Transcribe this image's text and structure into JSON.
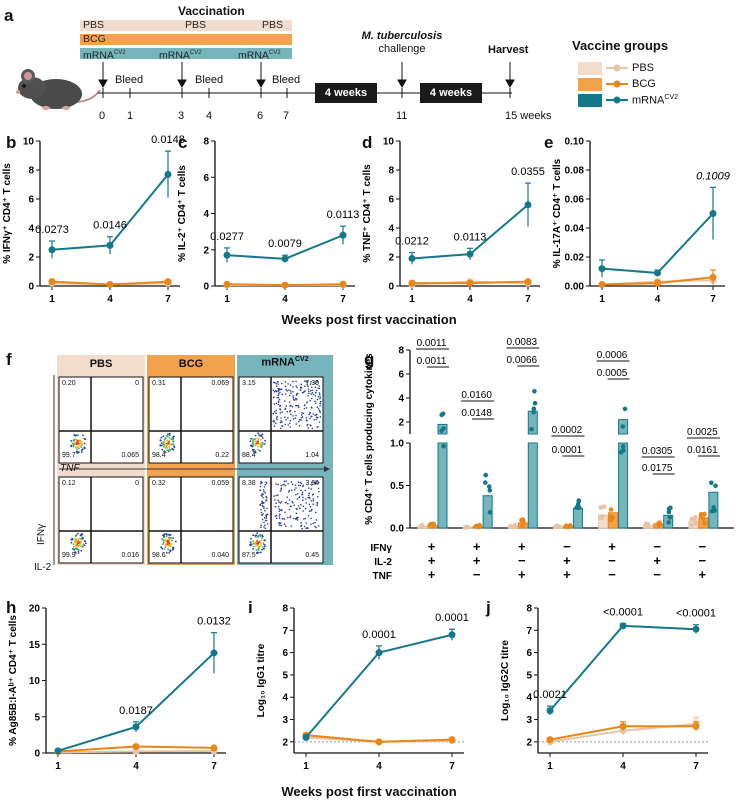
{
  "panel_letters": {
    "a": "a",
    "b": "b",
    "c": "c",
    "d": "d",
    "e": "e",
    "f": "f",
    "g": "g",
    "h": "h",
    "i": "i",
    "j": "j"
  },
  "colors": {
    "pbs": "#e8c4a6",
    "bcg": "#e8861a",
    "mrna": "#13798a",
    "pbs_bar": "#f2dccb",
    "bcg_bar": "#f3a24b",
    "mrna_bar": "#77b5bd"
  },
  "schedule": {
    "vaccination_title": "Vaccination",
    "rows": [
      {
        "label": "PBS",
        "mid": "PBS",
        "end": "PBS",
        "color": "#f2dccb"
      },
      {
        "label": "BCG",
        "color": "#f3a24b"
      },
      {
        "label": "mRNA",
        "sup": "CV2",
        "mid": "mRNA",
        "mid_sup": "CV2",
        "end": "mRNA",
        "end_sup": "CV2",
        "color": "#77b5bd"
      }
    ],
    "ticks": [
      "0",
      "1",
      "3",
      "4",
      "6",
      "7",
      "11",
      "15 weeks"
    ],
    "bleed_label": "Bleed",
    "box1": "4 weeks",
    "box2": "4 weeks",
    "challenge_italic": "M. tuberculosis",
    "challenge": "challenge",
    "harvest": "Harvest"
  },
  "legend": {
    "title": "Vaccine groups",
    "items": [
      {
        "label": "PBS"
      },
      {
        "label": "BCG"
      },
      {
        "label": "mRNA",
        "sup": "CV2"
      }
    ]
  },
  "x_title": "Weeks post first vaccination",
  "x_title_bottom": "Weeks post first vaccination",
  "flow": {
    "headers": [
      {
        "label": "PBS"
      },
      {
        "label": "BCG"
      },
      {
        "label": "mRNA",
        "sup": "CV2"
      }
    ],
    "axis_tnf": "TNF",
    "axis_ifn": "IFNγ",
    "axis_il2": "IL-2",
    "top_quadrants": [
      [
        "0.20",
        "0",
        "99.7",
        "0.065"
      ],
      [
        "0.31",
        "0.069",
        "98.4",
        "0.22"
      ],
      [
        "3.15",
        "7.39",
        "88.4",
        "1.04"
      ]
    ],
    "bottom_quadrants": [
      [
        "0.12",
        "0",
        "99.9",
        "0.016"
      ],
      [
        "0.32",
        "0.059",
        "98.6",
        "0.040"
      ],
      [
        "8.38",
        "3.64",
        "87.5",
        "0.45"
      ]
    ]
  },
  "chart_data": [
    {
      "id": "b",
      "type": "line",
      "ylabel": "% IFNγ⁺ CD4⁺ T cells",
      "x": [
        1,
        4,
        7
      ],
      "ylim": [
        0,
        10
      ],
      "yticks": [
        "0",
        "2",
        "4",
        "6",
        "8",
        "10"
      ],
      "series": [
        {
          "name": "PBS",
          "values": [
            0.2,
            0.1,
            0.2
          ]
        },
        {
          "name": "BCG",
          "values": [
            0.3,
            0.1,
            0.3
          ]
        },
        {
          "name": "mRNA CV2",
          "values": [
            2.5,
            2.8,
            7.7
          ],
          "err": [
            0.6,
            0.6,
            1.6
          ]
        }
      ],
      "annotations": [
        "0.0273",
        "0.0146",
        "0.0148"
      ]
    },
    {
      "id": "c",
      "type": "line",
      "ylabel": "% IL-2⁺ CD4⁺ T cells",
      "x": [
        1,
        4,
        7
      ],
      "ylim": [
        0,
        8
      ],
      "yticks": [
        "0",
        "2",
        "4",
        "6",
        "8"
      ],
      "series": [
        {
          "name": "PBS",
          "values": [
            0.05,
            0.05,
            0.05
          ]
        },
        {
          "name": "BCG",
          "values": [
            0.1,
            0.05,
            0.1
          ]
        },
        {
          "name": "mRNA CV2",
          "values": [
            1.7,
            1.5,
            2.8
          ],
          "err": [
            0.4,
            0.2,
            0.5
          ]
        }
      ],
      "annotations": [
        "0.0277",
        "0.0079",
        "0.0113"
      ]
    },
    {
      "id": "d",
      "type": "line",
      "ylabel": "% TNF⁺ CD4⁺ T cells",
      "x": [
        1,
        4,
        7
      ],
      "ylim": [
        0,
        10
      ],
      "yticks": [
        "0",
        "2",
        "4",
        "6",
        "8",
        "10"
      ],
      "series": [
        {
          "name": "PBS",
          "values": [
            0.1,
            0.3,
            0.2
          ]
        },
        {
          "name": "BCG",
          "values": [
            0.2,
            0.2,
            0.3
          ]
        },
        {
          "name": "mRNA CV2",
          "values": [
            1.9,
            2.2,
            5.6
          ],
          "err": [
            0.4,
            0.4,
            1.5
          ]
        }
      ],
      "annotations": [
        "0.0212",
        "0.0113",
        "0.0355"
      ]
    },
    {
      "id": "e",
      "type": "line",
      "ylabel": "% IL-17A⁺ CD4⁺ T cells",
      "x": [
        1,
        4,
        7
      ],
      "ylim": [
        0,
        0.1
      ],
      "yticks": [
        "0.00",
        "0.02",
        "0.04",
        "0.06",
        "0.08",
        "0.10"
      ],
      "series": [
        {
          "name": "PBS",
          "values": [
            0.001,
            0.003,
            0.004
          ]
        },
        {
          "name": "BCG",
          "values": [
            0.001,
            0.002,
            0.006
          ],
          "err": [
            0.001,
            0.002,
            0.005
          ]
        },
        {
          "name": "mRNA CV2",
          "values": [
            0.012,
            0.009,
            0.05
          ],
          "err": [
            0.006,
            0.002,
            0.018
          ]
        }
      ],
      "annotations": [
        "0.1009"
      ]
    },
    {
      "id": "g",
      "type": "bar",
      "ylabel": "% CD4⁺ T cells producing cytokines",
      "yticks_upper": [
        "2",
        "4",
        "6",
        "8"
      ],
      "yticks_lower": [
        "0.0",
        "0.5",
        "1.0"
      ],
      "row_labels": [
        "IFNγ",
        "IL-2",
        "TNF"
      ],
      "combos": [
        [
          "+",
          "+",
          "+"
        ],
        [
          "+",
          "+",
          "−"
        ],
        [
          "+",
          "−",
          "+"
        ],
        [
          "−",
          "+",
          "+"
        ],
        [
          "+",
          "−",
          "−"
        ],
        [
          "−",
          "+",
          "−"
        ],
        [
          "−",
          "−",
          "+"
        ]
      ],
      "series": [
        {
          "name": "PBS",
          "values": [
            0.02,
            0.01,
            0.02,
            0.02,
            0.15,
            0.03,
            0.08
          ]
        },
        {
          "name": "BCG",
          "values": [
            0.03,
            0.02,
            0.06,
            0.02,
            0.18,
            0.05,
            0.12
          ]
        },
        {
          "name": "mRNA CV2",
          "values": [
            1.8,
            0.38,
            2.9,
            0.23,
            2.2,
            0.15,
            0.42
          ]
        }
      ],
      "annotations": [
        "0.0011",
        "0.0011",
        "0.0160",
        "0.0148",
        "0.0083",
        "0.0066",
        "0.0002",
        "0.0001",
        "0.0006",
        "0.0005",
        "0.0305",
        "0.0175",
        "0.0025",
        "0.0161"
      ]
    },
    {
      "id": "h",
      "type": "line",
      "ylabel": "% Ag85B:I-Aᵇ⁺ CD4⁺ T cells",
      "x": [
        1,
        4,
        7
      ],
      "ylim": [
        0,
        20
      ],
      "yticks": [
        "0",
        "5",
        "10",
        "15",
        "20"
      ],
      "series": [
        {
          "name": "PBS",
          "values": [
            0.1,
            0.2,
            0.3
          ]
        },
        {
          "name": "BCG",
          "values": [
            0.2,
            0.9,
            0.7
          ]
        },
        {
          "name": "mRNA CV2",
          "values": [
            0.3,
            3.6,
            13.8
          ],
          "err": [
            0.2,
            0.7,
            2.8
          ]
        }
      ],
      "annotations": [
        "0.0187",
        "0.0132"
      ]
    },
    {
      "id": "i",
      "type": "line",
      "ylabel": "Log₁₀ IgG1 titre",
      "x": [
        1,
        4,
        7
      ],
      "ylim": [
        1.5,
        8
      ],
      "yticks": [
        "2",
        "3",
        "4",
        "5",
        "6",
        "7",
        "8"
      ],
      "series": [
        {
          "name": "PBS",
          "values": [
            2.2,
            2.0,
            2.05
          ]
        },
        {
          "name": "BCG",
          "values": [
            2.3,
            2.0,
            2.1
          ]
        },
        {
          "name": "mRNA CV2",
          "values": [
            2.2,
            6.0,
            6.8
          ],
          "err": [
            0.1,
            0.3,
            0.25
          ]
        }
      ],
      "annotations": [
        "0.0001",
        "0.0001"
      ]
    },
    {
      "id": "j",
      "type": "line",
      "ylabel": "Log₁₀ IgG2C titre",
      "x": [
        1,
        4,
        7
      ],
      "ylim": [
        1.5,
        8
      ],
      "yticks": [
        "2",
        "3",
        "4",
        "5",
        "6",
        "7",
        "8"
      ],
      "series": [
        {
          "name": "PBS",
          "values": [
            2.0,
            2.5,
            2.8
          ],
          "err": [
            0.05,
            0.2,
            0.3
          ]
        },
        {
          "name": "BCG",
          "values": [
            2.1,
            2.7,
            2.7
          ],
          "err": [
            0.05,
            0.2,
            0.2
          ]
        },
        {
          "name": "mRNA CV2",
          "values": [
            3.4,
            7.2,
            7.05
          ],
          "err": [
            0.2,
            0.1,
            0.2
          ]
        }
      ],
      "annotations": [
        "0.0021",
        "<0.0001",
        "<0.0001"
      ]
    }
  ]
}
